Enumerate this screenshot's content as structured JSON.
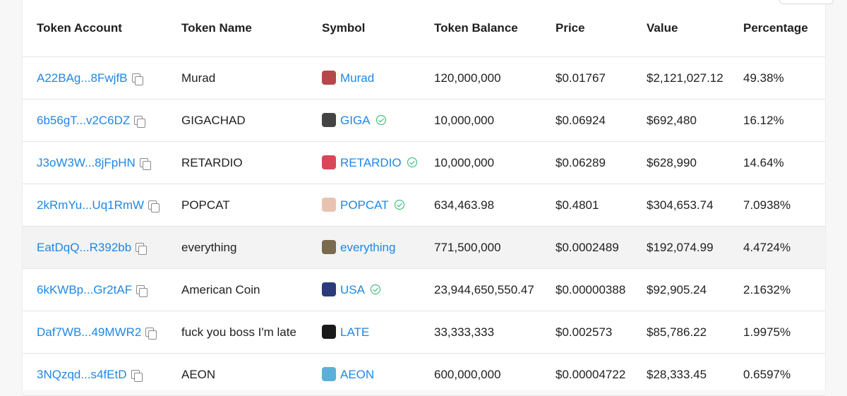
{
  "table": {
    "columns": [
      "Token Account",
      "Token Name",
      "Symbol",
      "Token Balance",
      "Price",
      "Value",
      "Percentage"
    ],
    "rows": [
      {
        "account": "A22BAg...8FwjfB",
        "name": "Murad",
        "symbol": "Murad",
        "verified": false,
        "logo_color": "#b5484a",
        "balance": "120,000,000",
        "price": "$0.01767",
        "value": "$2,121,027.12",
        "percentage": "49.38%"
      },
      {
        "account": "6b56gT...v2C6DZ",
        "name": "GIGACHAD",
        "symbol": "GIGA",
        "verified": true,
        "logo_color": "#444444",
        "balance": "10,000,000",
        "price": "$0.06924",
        "value": "$692,480",
        "percentage": "16.12%"
      },
      {
        "account": "J3oW3W...8jFpHN",
        "name": "RETARDIO",
        "symbol": "RETARDIO",
        "verified": true,
        "logo_color": "#d9465a",
        "balance": "10,000,000",
        "price": "$0.06289",
        "value": "$628,990",
        "percentage": "14.64%"
      },
      {
        "account": "2kRmYu...Uq1RmW",
        "name": "POPCAT",
        "symbol": "POPCAT",
        "verified": true,
        "logo_color": "#e8c4b0",
        "balance": "634,463.98",
        "price": "$0.4801",
        "value": "$304,653.74",
        "percentage": "7.0938%"
      },
      {
        "account": "EatDqQ...R392bb",
        "name": "everything",
        "symbol": "everything",
        "verified": false,
        "logo_color": "#7a6a4e",
        "balance": "771,500,000",
        "price": "$0.0002489",
        "value": "$192,074.99",
        "percentage": "4.4724%"
      },
      {
        "account": "6kKWBp...Gr2tAF",
        "name": "American Coin",
        "symbol": "USA",
        "verified": true,
        "logo_color": "#2a3a7a",
        "balance": "23,944,650,550.47",
        "price": "$0.00000388",
        "value": "$92,905.24",
        "percentage": "2.1632%"
      },
      {
        "account": "Daf7WB...49MWR2",
        "name": "fuck you boss I'm late",
        "symbol": "LATE",
        "verified": false,
        "logo_color": "#1a1a1a",
        "balance": "33,333,333",
        "price": "$0.002573",
        "value": "$85,786.22",
        "percentage": "1.9975%"
      },
      {
        "account": "3NQzqd...s4fEtD",
        "name": "AEON",
        "symbol": "AEON",
        "verified": false,
        "logo_color": "#5ab0d8",
        "balance": "600,000,000",
        "price": "$0.00004722",
        "value": "$28,333.45",
        "percentage": "0.6597%"
      }
    ]
  }
}
